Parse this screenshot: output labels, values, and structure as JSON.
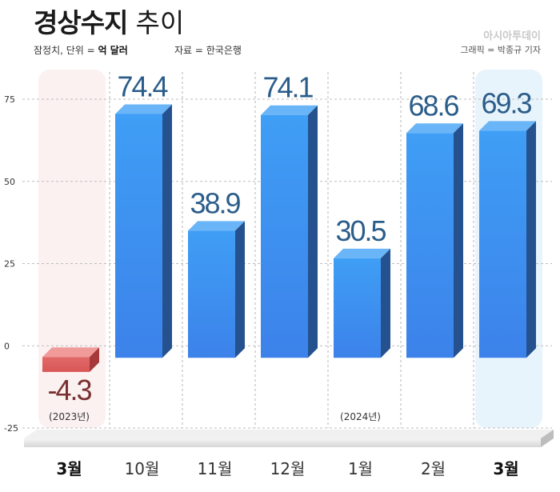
{
  "header": {
    "title_bold": "경상수지",
    "title_light": "추이",
    "unit_prefix": "잠정치, 단위 = ",
    "unit_value": "억 달러",
    "source": "자료 = 한국은행",
    "brand": "아시아투데이",
    "credit": "그래픽 = 박종규 기자"
  },
  "chart_data": {
    "type": "bar",
    "categories": [
      "3월",
      "10월",
      "11월",
      "12월",
      "1월",
      "2월",
      "3월"
    ],
    "values": [
      -4.3,
      74.4,
      38.9,
      74.1,
      30.5,
      68.6,
      69.3
    ],
    "value_labels": [
      "-4.3",
      "74.4",
      "38.9",
      "74.1",
      "30.5",
      "68.6",
      "69.3"
    ],
    "year_notes": [
      "(2023년)",
      "",
      "",
      "",
      "(2024년)",
      "",
      ""
    ],
    "yticks": [
      "75",
      "50",
      "25",
      "0",
      "-25"
    ],
    "ylim": [
      -25,
      75
    ],
    "grid": true,
    "highlighted_categories": [
      0,
      6
    ],
    "colors": {
      "negative_bar": "#e06060",
      "negative_label": "#7a3030",
      "positive_bar": "#3d8af0",
      "positive_label": "#2b5d8a",
      "highlight_bg": "#e8f4fc",
      "negative_bg": "#fbf1f1"
    }
  }
}
